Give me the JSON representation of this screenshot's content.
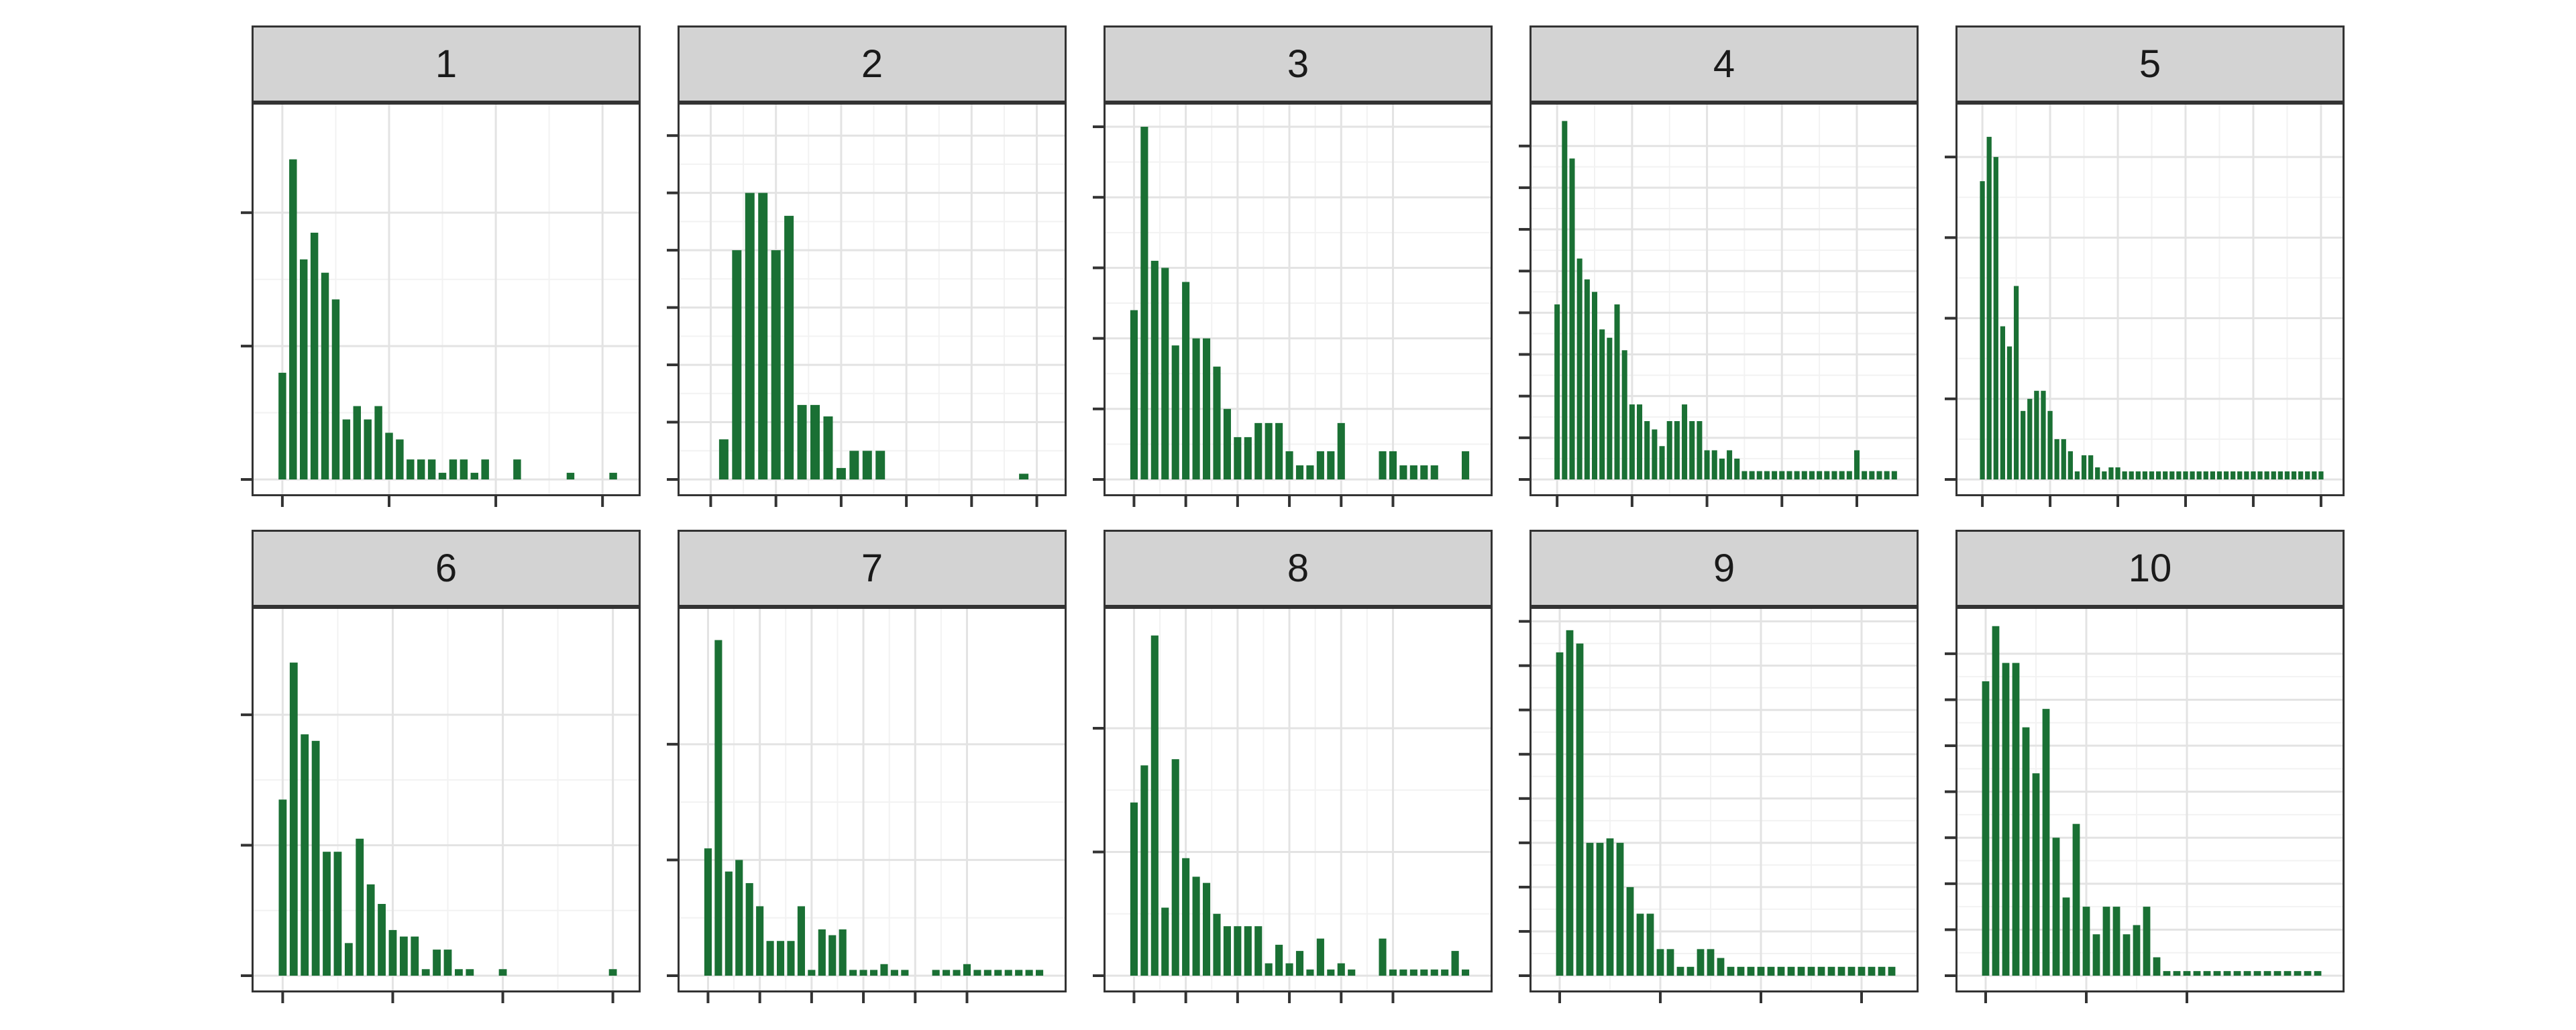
{
  "chart_data": {
    "type": "bar",
    "layout": "facet-grid 2x5",
    "bar_color": "#1a7034",
    "grid": true,
    "panel_background": "#ffffff",
    "strip_background": "#d3d3d3",
    "panels": [
      {
        "label": "1",
        "ylim": [
          0,
          55
        ],
        "yticks": [
          0,
          20,
          40
        ],
        "xticks": [
          0,
          10,
          20,
          30
        ],
        "x": [
          0,
          1,
          2,
          3,
          4,
          5,
          6,
          7,
          8,
          9,
          10,
          11,
          12,
          13,
          14,
          15,
          16,
          17,
          18,
          19,
          22,
          27,
          31
        ],
        "values": [
          16,
          48,
          33,
          37,
          31,
          27,
          9,
          11,
          9,
          11,
          7,
          6,
          3,
          3,
          3,
          1,
          3,
          3,
          1,
          3,
          3,
          1,
          1
        ]
      },
      {
        "label": "2",
        "ylim": [
          0,
          64
        ],
        "yticks": [
          0,
          10,
          20,
          30,
          40,
          50,
          60
        ],
        "xticks": [
          0,
          5,
          10,
          15,
          20,
          25
        ],
        "x": [
          1,
          2,
          3,
          4,
          5,
          6,
          7,
          8,
          9,
          10,
          11,
          12,
          13,
          24
        ],
        "values": [
          7,
          40,
          50,
          50,
          40,
          46,
          13,
          13,
          11,
          2,
          5,
          5,
          5,
          1
        ]
      },
      {
        "label": "3",
        "ylim": [
          0,
          52
        ],
        "yticks": [
          0,
          10,
          20,
          30,
          40,
          50
        ],
        "xticks": [
          0,
          5,
          10,
          15,
          20,
          25
        ],
        "x": [
          0,
          1,
          2,
          3,
          4,
          5,
          6,
          7,
          8,
          9,
          10,
          11,
          12,
          13,
          14,
          15,
          16,
          17,
          18,
          19,
          20,
          24,
          25,
          26,
          27,
          28,
          29,
          32
        ],
        "values": [
          24,
          50,
          31,
          30,
          19,
          28,
          20,
          20,
          16,
          10,
          6,
          6,
          8,
          8,
          8,
          4,
          2,
          2,
          4,
          4,
          8,
          4,
          4,
          2,
          2,
          2,
          2,
          4
        ]
      },
      {
        "label": "4",
        "ylim": [
          0,
          88
        ],
        "yticks": [
          0,
          10,
          20,
          30,
          40,
          50,
          60,
          70,
          80
        ],
        "xticks": [
          0,
          10,
          20,
          30,
          40
        ],
        "x": [
          0,
          1,
          2,
          3,
          4,
          5,
          6,
          7,
          8,
          9,
          10,
          11,
          12,
          13,
          14,
          15,
          16,
          17,
          18,
          19,
          20,
          21,
          22,
          23,
          24,
          25,
          26,
          27,
          28,
          29,
          30,
          31,
          32,
          33,
          34,
          35,
          36,
          37,
          38,
          39,
          40,
          41,
          42,
          43,
          44,
          45
        ],
        "values": [
          42,
          86,
          77,
          53,
          48,
          45,
          36,
          34,
          42,
          31,
          18,
          18,
          14,
          12,
          8,
          14,
          14,
          18,
          14,
          14,
          7,
          7,
          5,
          7,
          5,
          2,
          2,
          2,
          2,
          2,
          2,
          2,
          2,
          2,
          2,
          2,
          2,
          2,
          2,
          2,
          7,
          2,
          2,
          2,
          2,
          2
        ]
      },
      {
        "label": "5",
        "ylim": [
          0,
          91
        ],
        "yticks": [
          0,
          20,
          40,
          60,
          80
        ],
        "xticks": [
          0,
          10,
          20,
          30,
          40,
          50
        ],
        "x": [
          0,
          1,
          2,
          3,
          4,
          5,
          6,
          7,
          8,
          9,
          10,
          11,
          12,
          13,
          14,
          15,
          16,
          17,
          18,
          19,
          20,
          21,
          22,
          23,
          24,
          25,
          26,
          27,
          28,
          29,
          30,
          31,
          32,
          33,
          34,
          35,
          36,
          37,
          38,
          39,
          40,
          41,
          42,
          43,
          44,
          45,
          46,
          47,
          48,
          49,
          50
        ],
        "values": [
          74,
          85,
          80,
          38,
          33,
          48,
          17,
          20,
          22,
          22,
          17,
          10,
          10,
          7,
          2,
          6,
          6,
          3,
          2,
          3,
          3,
          2,
          2,
          2,
          2,
          2,
          2,
          2,
          2,
          2,
          2,
          2,
          2,
          2,
          2,
          2,
          2,
          2,
          2,
          2,
          2,
          2,
          2,
          2,
          2,
          2,
          2,
          2,
          2,
          2,
          2
        ]
      },
      {
        "label": "6",
        "ylim": [
          0,
          55
        ],
        "yticks": [
          0,
          20,
          40
        ],
        "xticks": [
          0,
          10,
          20,
          30
        ],
        "x": [
          0,
          1,
          2,
          3,
          4,
          5,
          6,
          7,
          8,
          9,
          10,
          11,
          12,
          13,
          14,
          15,
          16,
          17,
          20,
          30
        ],
        "values": [
          27,
          48,
          37,
          36,
          19,
          19,
          5,
          21,
          14,
          11,
          7,
          6,
          6,
          1,
          4,
          4,
          1,
          1,
          1,
          1
        ]
      },
      {
        "label": "7",
        "ylim": [
          0,
          62
        ],
        "yticks": [
          0,
          20,
          40
        ],
        "xticks": [
          0,
          5,
          10,
          15,
          20,
          25
        ],
        "x": [
          0,
          1,
          2,
          3,
          4,
          5,
          6,
          7,
          8,
          9,
          10,
          11,
          12,
          13,
          14,
          15,
          16,
          17,
          18,
          19,
          22,
          23,
          24,
          25,
          26,
          27,
          28,
          29,
          30,
          31,
          32
        ],
        "values": [
          22,
          58,
          18,
          20,
          16,
          12,
          6,
          6,
          6,
          12,
          1,
          8,
          7,
          8,
          1,
          1,
          1,
          2,
          1,
          1,
          1,
          1,
          1,
          2,
          1,
          1,
          1,
          1,
          1,
          1,
          1
        ]
      },
      {
        "label": "8",
        "ylim": [
          0,
          58
        ],
        "yticks": [
          0,
          20,
          40
        ],
        "xticks": [
          0,
          5,
          10,
          15,
          20,
          25
        ],
        "x": [
          0,
          1,
          2,
          3,
          4,
          5,
          6,
          7,
          8,
          9,
          10,
          11,
          12,
          13,
          14,
          15,
          16,
          17,
          18,
          19,
          20,
          21,
          24,
          25,
          26,
          27,
          28,
          29,
          30,
          31,
          32
        ],
        "values": [
          28,
          34,
          55,
          11,
          35,
          19,
          16,
          15,
          10,
          8,
          8,
          8,
          8,
          2,
          5,
          2,
          4,
          1,
          6,
          1,
          2,
          1,
          6,
          1,
          1,
          1,
          1,
          1,
          1,
          4,
          1
        ]
      },
      {
        "label": "9",
        "ylim": [
          0,
          81
        ],
        "yticks": [
          0,
          10,
          20,
          30,
          40,
          50,
          60,
          70,
          80
        ],
        "xticks": [
          0,
          10,
          20,
          30
        ],
        "x": [
          0,
          1,
          2,
          3,
          4,
          5,
          6,
          7,
          8,
          9,
          10,
          11,
          12,
          13,
          14,
          15,
          16,
          17,
          18,
          19,
          20,
          21,
          22,
          23,
          24,
          25,
          26,
          27,
          28,
          29,
          30,
          31,
          32,
          33
        ],
        "values": [
          73,
          78,
          75,
          30,
          30,
          31,
          30,
          20,
          14,
          14,
          6,
          6,
          2,
          2,
          6,
          6,
          4,
          2,
          2,
          2,
          2,
          2,
          2,
          2,
          2,
          2,
          2,
          2,
          2,
          2,
          2,
          2,
          2,
          2
        ]
      },
      {
        "label": "10",
        "ylim": [
          0,
          78
        ],
        "yticks": [
          0,
          10,
          20,
          30,
          40,
          50,
          60,
          70
        ],
        "xticks": [
          0,
          10,
          20
        ],
        "x": [
          0,
          1,
          2,
          3,
          4,
          5,
          6,
          7,
          8,
          9,
          10,
          11,
          12,
          13,
          14,
          15,
          16,
          17,
          18,
          19,
          20,
          21,
          22,
          23,
          24,
          25,
          26,
          27,
          28,
          29,
          30,
          31,
          32,
          33
        ],
        "values": [
          64,
          76,
          68,
          68,
          54,
          44,
          58,
          30,
          17,
          33,
          15,
          9,
          15,
          15,
          9,
          11,
          15,
          4,
          1,
          1,
          1,
          1,
          1,
          1,
          1,
          1,
          1,
          1,
          1,
          1,
          1,
          1,
          1,
          1
        ]
      }
    ]
  }
}
